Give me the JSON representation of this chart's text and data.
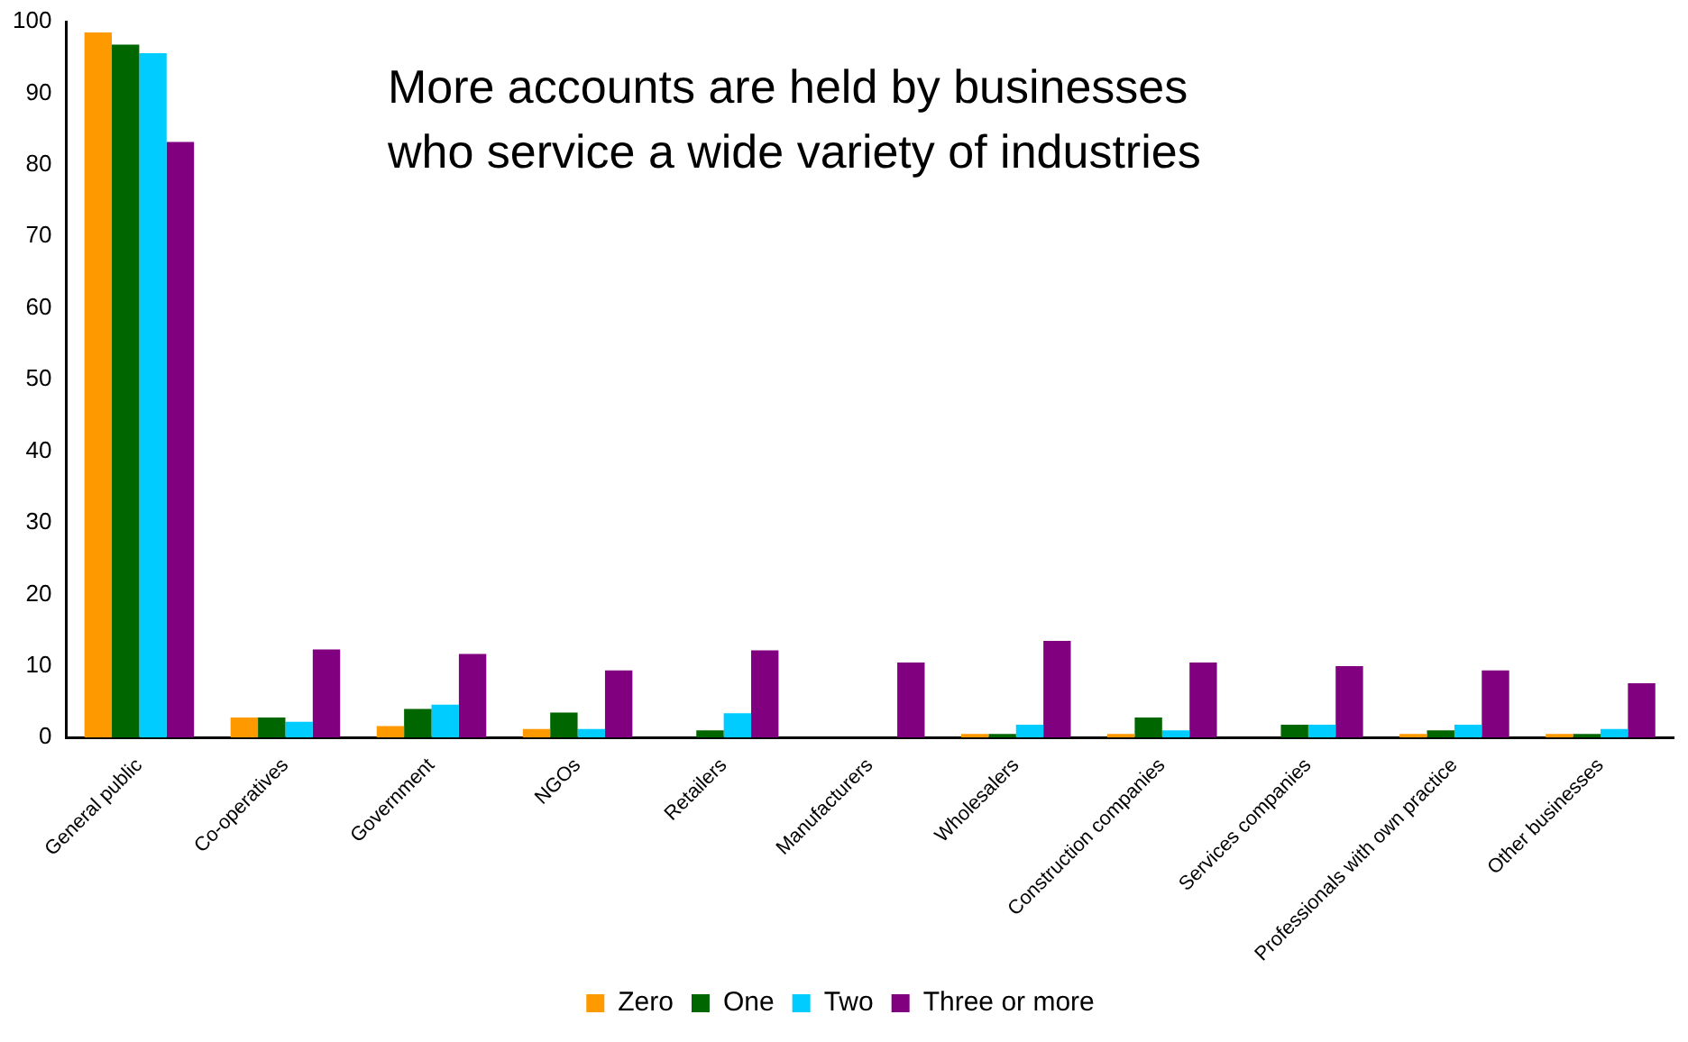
{
  "chart_data": {
    "type": "bar",
    "title": "More accounts are held by businesses\nwho service a wide variety of industries",
    "categories": [
      "General public",
      "Co-operatives",
      "Government",
      "NGOs",
      "Retailers",
      "Manufacturers",
      "Wholesalers",
      "Construction companies",
      "Services companies",
      "Professionals with own practice",
      "Other businesses"
    ],
    "series": [
      {
        "name": "Zero",
        "color": "#ff9900",
        "values": [
          98.5,
          2.8,
          1.6,
          1.2,
          0,
          0,
          0.5,
          0.5,
          0,
          0.5,
          0.5
        ]
      },
      {
        "name": "One",
        "color": "#006600",
        "values": [
          96.8,
          2.8,
          4.0,
          3.5,
          1.0,
          0,
          0.5,
          2.8,
          1.8,
          1.0,
          0.5
        ]
      },
      {
        "name": "Two",
        "color": "#00ccff",
        "values": [
          95.6,
          2.2,
          4.6,
          1.2,
          3.4,
          0,
          1.8,
          1.0,
          1.8,
          1.8,
          1.2
        ]
      },
      {
        "name": "Three or more",
        "color": "#800080",
        "values": [
          83.2,
          12.3,
          11.7,
          9.4,
          12.2,
          10.5,
          13.5,
          10.5,
          10.0,
          9.4,
          7.6
        ]
      }
    ],
    "ylim": [
      0,
      100
    ],
    "yticks": [
      0,
      10,
      20,
      30,
      40,
      50,
      60,
      70,
      80,
      90,
      100
    ],
    "grid": false,
    "legend": "bottom"
  }
}
